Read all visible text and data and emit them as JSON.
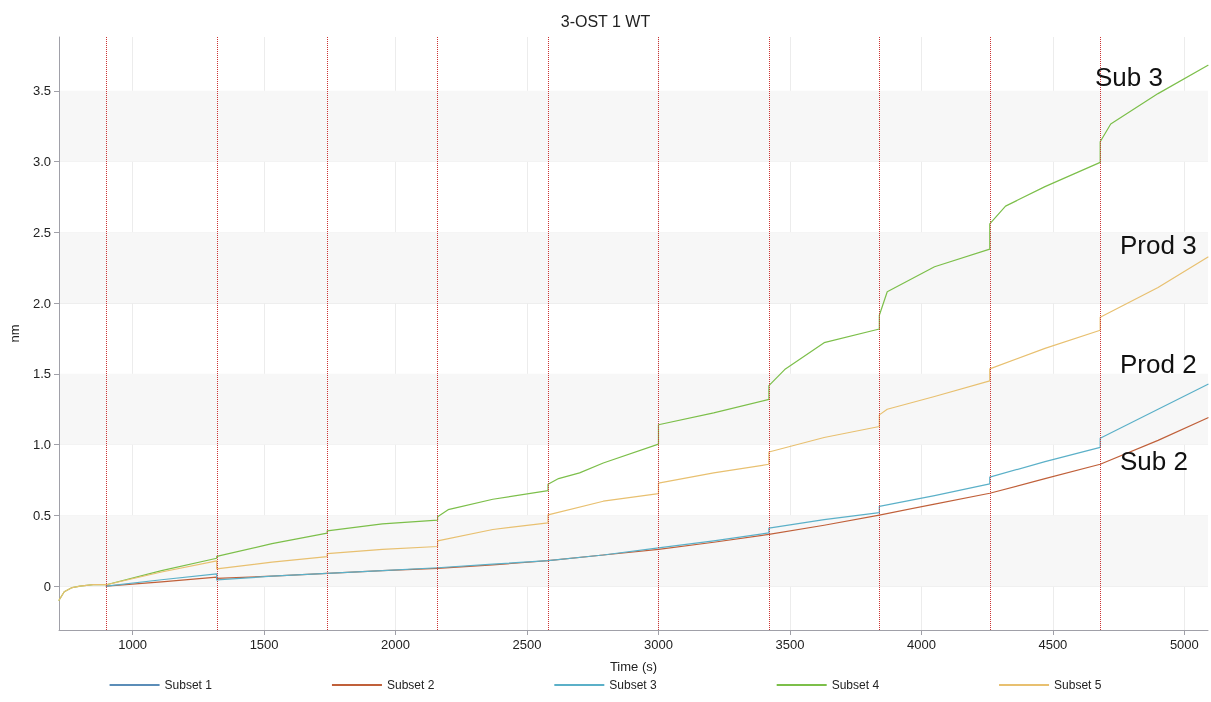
{
  "chart_data": {
    "type": "line",
    "title": "3-OST 1 WT",
    "xlabel": "Time (s)",
    "ylabel": "nm",
    "xlim": [
      720,
      5090
    ],
    "xticks": [
      1000,
      1500,
      2000,
      2500,
      3000,
      3500,
      4000,
      4500,
      5000
    ],
    "ylim": [
      -0.31,
      3.88
    ],
    "yticks": [
      0,
      {
        "value": 0.5,
        "label": "0.5"
      },
      {
        "value": 1,
        "label": "1.0"
      },
      {
        "value": 1.5,
        "label": "1.5"
      },
      {
        "value": 2,
        "label": "2.0"
      },
      {
        "value": 2.5,
        "label": "2.5"
      },
      {
        "value": 3,
        "label": "3.0"
      },
      {
        "value": 3.5,
        "label": "3.5"
      }
    ],
    "grid": true,
    "legend": "bottom",
    "marker": "none",
    "line_style": "solid",
    "ref_lines": [
      {
        "axis": "x",
        "value": 900,
        "color": "#cc3333",
        "line_style": "dotted"
      },
      {
        "axis": "x",
        "value": 1320,
        "color": "#cc3333",
        "line_style": "dotted"
      },
      {
        "axis": "x",
        "value": 1740,
        "color": "#cc3333",
        "line_style": "dotted"
      },
      {
        "axis": "x",
        "value": 2160,
        "color": "#cc3333",
        "line_style": "dotted"
      },
      {
        "axis": "x",
        "value": 2580,
        "color": "#cc3333",
        "line_style": "dotted"
      },
      {
        "axis": "x",
        "value": 3000,
        "color": "#cc3333",
        "line_style": "dotted"
      },
      {
        "axis": "x",
        "value": 3420,
        "color": "#cc3333",
        "line_style": "dotted"
      },
      {
        "axis": "x",
        "value": 3840,
        "color": "#cc3333",
        "line_style": "dotted"
      },
      {
        "axis": "x",
        "value": 4260,
        "color": "#cc3333",
        "line_style": "dotted"
      },
      {
        "axis": "x",
        "value": 4680,
        "color": "#cc3333",
        "line_style": "dotted"
      }
    ],
    "annotations": [
      "Sub 3",
      "Prod 3",
      "Prod 2",
      "Sub 2"
    ],
    "series": [
      {
        "name": "Subset 1",
        "color": "#5b8db8"
      },
      {
        "name": "Subset 2",
        "color": "#c0603a",
        "x": [
          900,
          1110,
          1320,
          1320,
          1530,
          1740,
          1950,
          2160,
          2370,
          2580,
          2790,
          3000,
          3210,
          3420,
          3630,
          3840,
          4050,
          4260,
          4470,
          4680,
          4900,
          5090
        ],
        "values": [
          0,
          0.03,
          0.064,
          0.055,
          0.07,
          0.09,
          0.11,
          0.125,
          0.15,
          0.18,
          0.22,
          0.26,
          0.31,
          0.366,
          0.43,
          0.502,
          0.58,
          0.656,
          0.76,
          0.861,
          1.03,
          1.19
        ]
      },
      {
        "name": "Subset 3",
        "color": "#5bb0c8",
        "x": [
          900,
          1110,
          1320,
          1320,
          1530,
          1740,
          1950,
          2160,
          2370,
          2580,
          2790,
          3000,
          3210,
          3420,
          3420,
          3630,
          3840,
          3840,
          4050,
          4260,
          4260,
          4470,
          4680,
          4680,
          4900,
          5090
        ],
        "values": [
          0,
          0.045,
          0.086,
          0.044,
          0.07,
          0.09,
          0.11,
          0.13,
          0.155,
          0.18,
          0.22,
          0.27,
          0.32,
          0.376,
          0.41,
          0.47,
          0.52,
          0.564,
          0.64,
          0.723,
          0.77,
          0.88,
          0.98,
          1.045,
          1.25,
          1.427
        ]
      },
      {
        "name": "Subset 4",
        "color": "#7cbf4a",
        "x": [
          720,
          740,
          770,
          800,
          850,
          900,
          1110,
          1320,
          1320,
          1530,
          1740,
          1740,
          1950,
          2160,
          2160,
          2200,
          2370,
          2580,
          2580,
          2620,
          2700,
          2790,
          3000,
          3000,
          3210,
          3420,
          3420,
          3480,
          3630,
          3840,
          3840,
          3870,
          4050,
          4260,
          4260,
          4320,
          4470,
          4680,
          4680,
          4720,
          4900,
          5090
        ],
        "values": [
          -0.1,
          -0.04,
          -0.01,
          0.0,
          0.01,
          0.01,
          0.11,
          0.197,
          0.21,
          0.3,
          0.375,
          0.39,
          0.44,
          0.467,
          0.49,
          0.54,
          0.614,
          0.675,
          0.72,
          0.76,
          0.8,
          0.87,
          1.003,
          1.14,
          1.224,
          1.32,
          1.417,
          1.53,
          1.72,
          1.817,
          1.914,
          2.08,
          2.257,
          2.381,
          2.56,
          2.685,
          2.823,
          2.994,
          3.14,
          3.265,
          3.48,
          3.68
        ]
      },
      {
        "name": "Subset 5",
        "color": "#e8c070",
        "x": [
          720,
          740,
          770,
          800,
          850,
          900,
          1110,
          1320,
          1320,
          1530,
          1740,
          1740,
          1950,
          2160,
          2160,
          2370,
          2580,
          2580,
          2790,
          3000,
          3000,
          3210,
          3420,
          3420,
          3630,
          3840,
          3840,
          3870,
          4050,
          4260,
          4260,
          4470,
          4680,
          4680,
          4900,
          5090
        ],
        "values": [
          -0.1,
          -0.04,
          -0.01,
          0.0,
          0.01,
          0.01,
          0.1,
          0.178,
          0.122,
          0.17,
          0.208,
          0.23,
          0.26,
          0.28,
          0.32,
          0.4,
          0.447,
          0.503,
          0.6,
          0.653,
          0.728,
          0.8,
          0.861,
          0.948,
          1.05,
          1.128,
          1.21,
          1.25,
          1.34,
          1.45,
          1.535,
          1.68,
          1.808,
          1.9,
          2.11,
          2.325
        ]
      }
    ]
  }
}
